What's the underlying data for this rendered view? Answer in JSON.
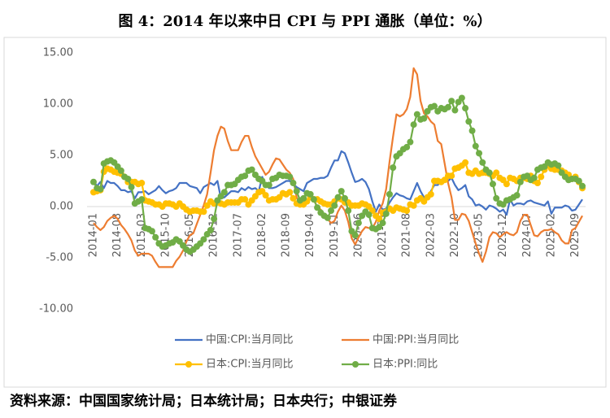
{
  "chart_data": {
    "type": "line",
    "title": "图 4：2014 年以来中日 CPI 与 PPI 通胀（单位：%）",
    "source": "资料来源：中国国家统计局；日本统计局；日本央行；中银证券",
    "categories": [
      "2014-01",
      null,
      null,
      null,
      null,
      null,
      null,
      "2014-08",
      null,
      null,
      null,
      null,
      null,
      null,
      "2015-03",
      null,
      null,
      null,
      null,
      null,
      null,
      "2015-10",
      null,
      null,
      null,
      null,
      null,
      null,
      "2016-05",
      null,
      null,
      null,
      null,
      null,
      null,
      "2016-12",
      null,
      null,
      null,
      null,
      null,
      null,
      "2017-07",
      null,
      null,
      null,
      null,
      null,
      null,
      "2018-02",
      null,
      null,
      null,
      null,
      null,
      null,
      "2018-09",
      null,
      null,
      null,
      null,
      null,
      null,
      "2019-04",
      null,
      null,
      null,
      null,
      null,
      null,
      "2019-11",
      null,
      null,
      null,
      null,
      null,
      null,
      "2020-06",
      null,
      null,
      null,
      null,
      null,
      null,
      "2021-01",
      null,
      null,
      null,
      null,
      null,
      null,
      "2021-08",
      null,
      null,
      null,
      null,
      null,
      null,
      "2022-03",
      null,
      null,
      null,
      null,
      null,
      null,
      "2022-10",
      null,
      null,
      null,
      null,
      null,
      null,
      "2023-05",
      null,
      null,
      null,
      null,
      null,
      null,
      "2023-12",
      null,
      null,
      null,
      null,
      null,
      null,
      "2024-07",
      null,
      null,
      null,
      null,
      null,
      null,
      "2025-02",
      null,
      null,
      null,
      null,
      null,
      null,
      "2025-09",
      null,
      null
    ],
    "ylim": [
      -10,
      15
    ],
    "yticks": [
      {
        "value": 15,
        "label": "15.00"
      },
      {
        "value": 10,
        "label": "10.00"
      },
      {
        "value": 5,
        "label": "5.00"
      },
      {
        "value": 0,
        "label": "0.00"
      },
      {
        "value": -5,
        "label": "-5.00"
      },
      {
        "value": -10,
        "label": "-10.00"
      }
    ],
    "series": [
      {
        "name": "中国:CPI:当月同比",
        "color": "#4472c4",
        "marker": false,
        "values": [
          2.5,
          2.0,
          2.4,
          1.8,
          2.5,
          2.3,
          2.3,
          2.0,
          1.6,
          1.6,
          1.4,
          1.5,
          0.8,
          1.4,
          1.4,
          1.5,
          1.2,
          1.4,
          1.6,
          2.0,
          1.6,
          1.3,
          1.5,
          1.6,
          1.8,
          2.3,
          2.3,
          2.3,
          2.0,
          1.9,
          1.8,
          1.3,
          1.9,
          2.1,
          2.3,
          2.1,
          2.5,
          0.8,
          0.9,
          1.2,
          1.5,
          1.5,
          1.4,
          1.8,
          1.6,
          1.9,
          1.7,
          1.8,
          1.5,
          2.9,
          2.1,
          1.8,
          1.8,
          1.9,
          2.1,
          2.3,
          2.5,
          2.5,
          2.2,
          1.9,
          1.7,
          1.5,
          2.3,
          2.5,
          2.7,
          2.7,
          2.8,
          2.8,
          3.0,
          3.8,
          4.5,
          4.5,
          5.4,
          5.2,
          4.3,
          3.3,
          2.4,
          2.5,
          2.7,
          2.4,
          1.7,
          0.5,
          -0.5,
          0.2,
          -0.3,
          -0.2,
          0.4,
          0.9,
          1.3,
          1.1,
          1.0,
          0.8,
          0.7,
          1.5,
          2.3,
          1.5,
          0.9,
          0.9,
          1.5,
          2.1,
          2.1,
          2.5,
          2.7,
          2.5,
          2.8,
          2.1,
          1.6,
          1.8,
          2.1,
          1.0,
          0.7,
          0.1,
          0.2,
          0.0,
          -0.3,
          0.1,
          0.0,
          -0.2,
          -0.5,
          -0.3,
          -0.8,
          0.7,
          0.1,
          0.3,
          0.3,
          0.2,
          0.5,
          0.6,
          0.4,
          0.3,
          0.2,
          0.1,
          0.5,
          -0.7,
          -0.1,
          -0.1,
          -0.1,
          0.1,
          0.0,
          -0.4,
          -0.3,
          0.2,
          0.7
        ]
      },
      {
        "name": "中国:PPI:当月同比",
        "color": "#ed7d31",
        "marker": false,
        "values": [
          -1.6,
          -2.0,
          -2.3,
          -2.0,
          -1.4,
          -1.1,
          -0.9,
          -1.2,
          -1.8,
          -2.2,
          -2.7,
          -3.3,
          -4.3,
          -4.8,
          -4.6,
          -4.6,
          -4.6,
          -4.8,
          -5.4,
          -5.9,
          -5.9,
          -5.9,
          -5.9,
          -5.9,
          -5.3,
          -4.9,
          -4.3,
          -3.4,
          -2.8,
          -2.6,
          -1.7,
          -0.8,
          0.1,
          1.2,
          3.3,
          5.5,
          6.9,
          7.8,
          7.6,
          6.4,
          5.5,
          5.5,
          5.5,
          6.3,
          6.9,
          6.9,
          5.8,
          4.9,
          4.3,
          3.7,
          3.1,
          3.4,
          4.1,
          4.7,
          4.6,
          4.1,
          3.6,
          3.3,
          2.7,
          0.9,
          0.1,
          0.1,
          0.4,
          0.9,
          0.6,
          0.0,
          -0.3,
          -0.8,
          -1.2,
          -1.6,
          -1.4,
          -0.5,
          0.1,
          -0.4,
          -1.5,
          -3.1,
          -3.7,
          -3.0,
          -2.4,
          -2.0,
          -2.1,
          -2.1,
          -1.5,
          -0.4,
          0.3,
          1.7,
          4.4,
          6.8,
          9.0,
          8.8,
          9.0,
          9.5,
          10.7,
          13.5,
          12.9,
          10.3,
          9.1,
          8.8,
          8.3,
          8.0,
          6.4,
          6.1,
          4.2,
          2.3,
          0.9,
          -1.3,
          -1.3,
          -0.7,
          -0.8,
          -1.4,
          -2.5,
          -3.6,
          -4.6,
          -5.4,
          -4.4,
          -3.0,
          -2.5,
          -2.6,
          -3.0,
          -2.7,
          -2.5,
          -2.7,
          -2.8,
          -2.5,
          -1.4,
          -0.8,
          -0.8,
          -1.8,
          -2.8,
          -2.9,
          -2.5,
          -2.3,
          -2.3,
          -2.2,
          -2.5,
          -2.7,
          -3.3,
          -3.6,
          -3.6,
          -2.3,
          -2.1,
          -1.5,
          -0.9
        ]
      },
      {
        "name": "日本:CPI:当月同比",
        "color": "#ffc000",
        "marker": true,
        "values": [
          1.4,
          1.5,
          1.6,
          3.4,
          3.7,
          3.6,
          3.4,
          3.3,
          3.2,
          2.9,
          2.4,
          2.4,
          2.4,
          2.2,
          2.3,
          0.6,
          0.5,
          0.4,
          0.2,
          0.2,
          0.0,
          0.3,
          0.3,
          0.2,
          0.0,
          0.3,
          0.0,
          -0.3,
          -0.5,
          -0.4,
          -0.4,
          -0.5,
          -0.5,
          0.1,
          0.5,
          0.3,
          0.4,
          0.3,
          0.2,
          0.4,
          0.4,
          0.4,
          0.4,
          0.7,
          0.7,
          0.2,
          0.6,
          1.0,
          1.4,
          1.5,
          1.1,
          0.6,
          0.7,
          0.7,
          0.9,
          1.3,
          1.2,
          1.4,
          0.8,
          0.3,
          0.2,
          0.2,
          0.5,
          0.9,
          0.7,
          0.7,
          0.5,
          0.3,
          0.2,
          0.2,
          0.5,
          0.8,
          0.7,
          0.4,
          0.4,
          0.1,
          0.1,
          0.1,
          0.3,
          0.2,
          0.0,
          -0.4,
          -0.9,
          -1.2,
          -0.6,
          -0.5,
          -0.2,
          -0.4,
          -0.1,
          -0.2,
          -0.3,
          -0.4,
          0.2,
          0.1,
          0.6,
          0.8,
          0.5,
          0.9,
          1.2,
          2.5,
          2.5,
          2.4,
          2.6,
          3.0,
          3.0,
          3.7,
          3.8,
          4.0,
          4.3,
          3.3,
          3.2,
          3.5,
          3.2,
          3.3,
          3.3,
          3.2,
          3.0,
          3.3,
          2.8,
          2.6,
          2.2,
          2.8,
          2.7,
          2.5,
          2.8,
          2.8,
          2.7,
          3.0,
          2.5,
          2.3,
          2.9,
          3.6,
          4.0,
          3.7,
          3.6,
          3.6,
          3.5,
          3.3,
          3.1,
          2.7,
          2.9,
          2.4,
          1.8
        ]
      },
      {
        "name": "日本:PPI:同比",
        "color": "#70ad47",
        "marker": true,
        "values": [
          2.4,
          1.8,
          1.7,
          4.2,
          4.4,
          4.5,
          4.3,
          3.9,
          3.5,
          2.9,
          2.7,
          1.9,
          0.3,
          0.5,
          0.7,
          -2.1,
          -2.2,
          -2.4,
          -3.0,
          -3.6,
          -3.9,
          -3.8,
          -3.6,
          -3.5,
          -3.2,
          -3.4,
          -3.8,
          -4.2,
          -4.4,
          -4.2,
          -3.9,
          -3.6,
          -3.2,
          -2.7,
          -2.3,
          -1.2,
          0.6,
          1.0,
          1.4,
          2.1,
          2.1,
          2.2,
          2.6,
          2.9,
          3.0,
          3.5,
          3.6,
          3.1,
          2.7,
          2.5,
          2.1,
          2.1,
          2.7,
          2.8,
          3.1,
          3.0,
          3.0,
          2.9,
          2.3,
          1.5,
          0.6,
          0.8,
          1.3,
          1.2,
          0.7,
          -0.1,
          -0.6,
          -0.9,
          -1.1,
          -0.4,
          0.1,
          0.9,
          1.5,
          0.8,
          -0.4,
          -2.4,
          -2.8,
          -1.6,
          -0.9,
          -0.5,
          -0.8,
          -2.1,
          -2.2,
          -2.0,
          -1.6,
          -0.7,
          1.2,
          3.8,
          4.9,
          5.2,
          5.6,
          5.8,
          6.3,
          8.0,
          9.0,
          8.5,
          8.6,
          9.3,
          9.7,
          9.8,
          9.3,
          9.6,
          9.5,
          9.7,
          10.3,
          9.4,
          10.2,
          10.6,
          9.6,
          8.3,
          7.4,
          5.9,
          5.2,
          4.3,
          3.6,
          3.3,
          2.2,
          0.8,
          0.3,
          0.2,
          0.6,
          0.7,
          0.9,
          1.1,
          2.4,
          2.9,
          3.0,
          2.6,
          2.8,
          3.6,
          3.8,
          3.9,
          4.3,
          4.1,
          4.2,
          4.0,
          3.3,
          2.9,
          2.6,
          2.7,
          2.7,
          2.5,
          2.0
        ]
      }
    ]
  }
}
